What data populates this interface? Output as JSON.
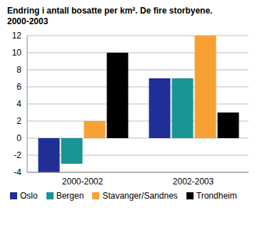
{
  "chart_data": {
    "type": "bar",
    "title": "Endring i antall bosatte per km². De fire storbyene. 2000-2003",
    "categories": [
      "2000-2002",
      "2002-2003"
    ],
    "series": [
      {
        "name": "Oslo",
        "color": "#1f2f96",
        "values": [
          -4,
          7
        ]
      },
      {
        "name": "Bergen",
        "color": "#1a9595",
        "values": [
          -3,
          7
        ]
      },
      {
        "name": "Stavanger/Sandnes",
        "color": "#f7a033",
        "values": [
          2,
          12
        ]
      },
      {
        "name": "Trondheim",
        "color": "#000000",
        "values": [
          10,
          3
        ]
      }
    ],
    "ylim": [
      -4,
      12
    ],
    "yticks": [
      -4,
      -2,
      0,
      2,
      4,
      6,
      8,
      10,
      12
    ],
    "grid": true,
    "legend": "bottom"
  }
}
